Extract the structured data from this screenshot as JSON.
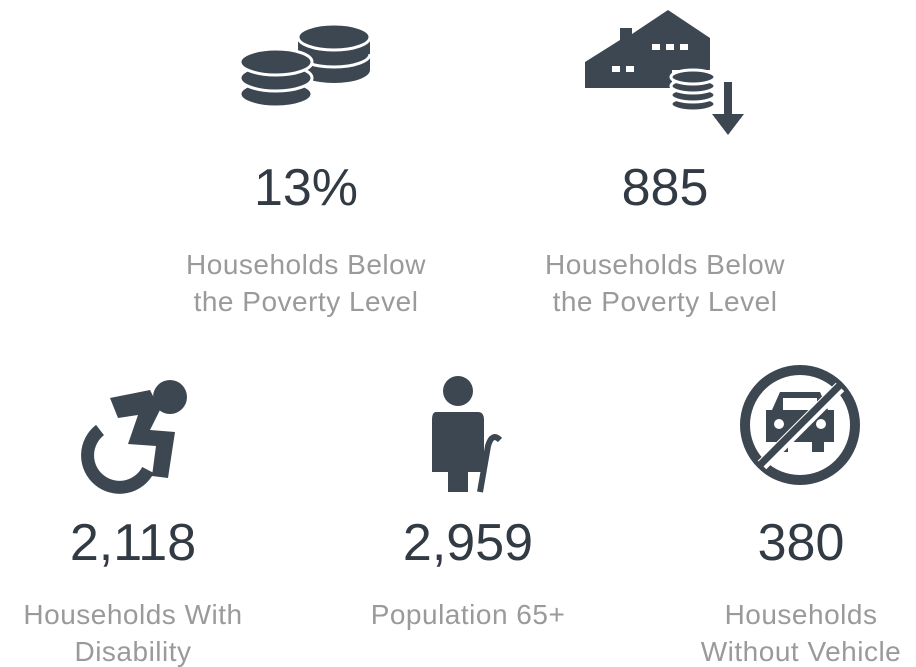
{
  "stats": [
    {
      "value": "13%",
      "label": [
        "Households Below",
        "the Poverty Level"
      ]
    },
    {
      "value": "885",
      "label": [
        "Households Below",
        "the Poverty Level"
      ]
    },
    {
      "value": "2,118",
      "label": [
        "Households With",
        "Disability"
      ]
    },
    {
      "value": "2,959",
      "label": [
        "Population 65+"
      ]
    },
    {
      "value": "380",
      "label": [
        "Households",
        "Without Vehicle"
      ]
    }
  ]
}
